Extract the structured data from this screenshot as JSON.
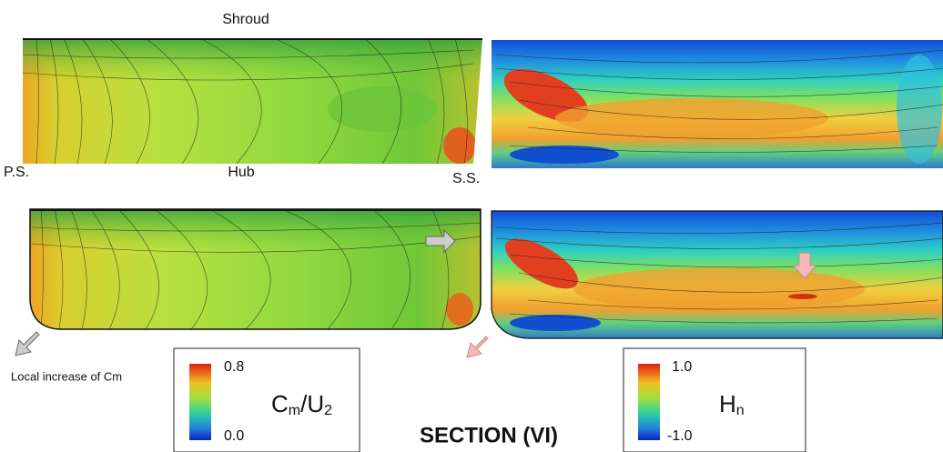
{
  "labels": {
    "shroud": "Shroud",
    "hub": "Hub",
    "ps": "P.S.",
    "ss": "S.S.",
    "note": "Local increase of Cm"
  },
  "section": "SECTION (VI)",
  "colorbars": [
    {
      "max": "0.8",
      "min": "0.0",
      "label": [
        "C",
        "m",
        "/U",
        "2"
      ]
    },
    {
      "max": "1.0",
      "min": "-1.0",
      "label": [
        "H",
        "n"
      ]
    }
  ]
}
